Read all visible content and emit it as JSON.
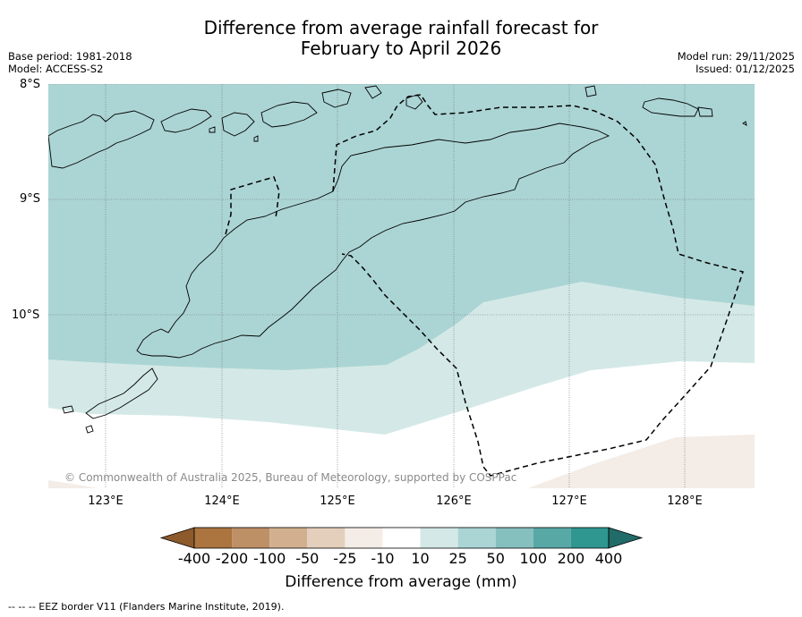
{
  "title_line1": "Difference from average rainfall forecast for",
  "title_line2": "February to April 2026",
  "meta": {
    "base_period": "Base period: 1981-2018",
    "model": "Model: ACCESS-S2",
    "model_run": "Model run: 29/11/2025",
    "issued": "Issued: 01/12/2025"
  },
  "axes": {
    "lat_labels": [
      "8°S",
      "9°S",
      "10°S"
    ],
    "lon_labels": [
      "123°E",
      "124°E",
      "125°E",
      "126°E",
      "127°E",
      "128°E"
    ]
  },
  "copyright": "© Commonwealth of Australia 2025, Bureau of Meteorology, supported by COSPPac",
  "colorbar": {
    "title": "Difference from average (mm)",
    "tick_labels": [
      "-400",
      "-200",
      "-100",
      "-50",
      "-25",
      "-10",
      "10",
      "25",
      "50",
      "100",
      "200",
      "400"
    ],
    "colors": [
      "#8c5a2b",
      "#ac743f",
      "#be9066",
      "#d2b08f",
      "#e3cfbb",
      "#f4ece6",
      "#ffffff",
      "#d4e9e7",
      "#abd5d4",
      "#85bfbe",
      "#58a8a6",
      "#2f9690",
      "#216b68"
    ]
  },
  "legend_note": "--  --  -- EEZ border V11 (Flanders Marine Institute, 2019)."
}
